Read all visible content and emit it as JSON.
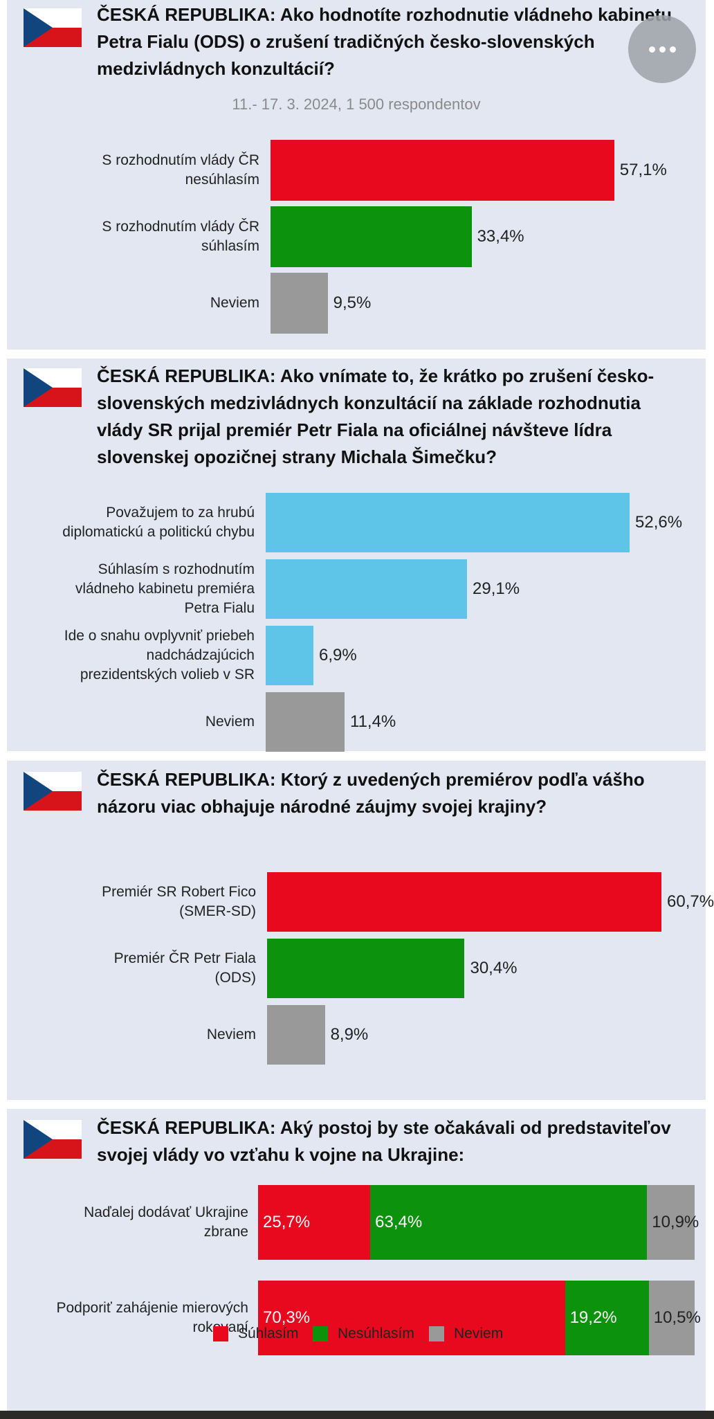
{
  "colors": {
    "red": "#e8091e",
    "green": "#0c920c",
    "gray": "#999999",
    "blue": "#5ec5e8",
    "panel": "#e2e7f1"
  },
  "legend": [
    {
      "label": "Súhlasím",
      "color": "#e8091e"
    },
    {
      "label": "Nesúhlasím",
      "color": "#0c920c"
    },
    {
      "label": "Neviem",
      "color": "#999999"
    }
  ],
  "chart_data": [
    {
      "type": "bar",
      "title": "ČESKÁ REPUBLIKA: Ako hodnotíte rozhodnutie vládneho kabinetu Petra Fialu (ODS) o zrušení tradičných česko-slovenských medzivládnych konzultácií?",
      "subtitle": "11.- 17. 3. 2024, 1 500 respondentov",
      "categories": [
        "S rozhodnutím vlády ČR\nnesúhlasím",
        "S rozhodnutím vlády ČR\nsúhlasím",
        "Neviem"
      ],
      "values": [
        57.1,
        33.4,
        9.5
      ],
      "value_labels": [
        "57,1%",
        "33,4%",
        "9,5%"
      ],
      "colors": [
        "#e8091e",
        "#0c920c",
        "#999999"
      ],
      "xlim": [
        0,
        65
      ]
    },
    {
      "type": "bar",
      "title": "ČESKÁ REPUBLIKA: Ako vnímate to, že krátko po zrušení česko-slovenských medzivládnych konzultácií na základe rozhodnutia vlády SR prijal premiér Petr Fiala na oficiálnej návšteve lídra slovenskej opozičnej strany Michala Šimečku?",
      "categories": [
        "Považujem to za hrubú\ndiplomatickú a politickú chybu",
        "Súhlasím s rozhodnutím\nvládneho kabinetu premiéra\nPetra Fialu",
        "Ide o snahu ovplyvniť priebeh\nnadchádzajúcich\nprezidentských volieb v SR",
        "Neviem"
      ],
      "values": [
        52.6,
        29.1,
        6.9,
        11.4
      ],
      "value_labels": [
        "52,6%",
        "29,1%",
        "6,9%",
        "11,4%"
      ],
      "colors": [
        "#5ec5e8",
        "#5ec5e8",
        "#5ec5e8",
        "#999999"
      ],
      "xlim": [
        0,
        65
      ]
    },
    {
      "type": "bar",
      "title": "ČESKÁ REPUBLIKA: Ktorý z uvedených premiérov podľa vášho názoru viac obhajuje národné záujmy svojej krajiny?",
      "categories": [
        "Premiér SR Robert Fico\n(SMER-SD)",
        "Premiér ČR Petr Fiala\n(ODS)",
        "Neviem"
      ],
      "values": [
        60.7,
        30.4,
        8.9
      ],
      "value_labels": [
        "60,7%",
        "30,4%",
        "8,9%"
      ],
      "colors": [
        "#e8091e",
        "#0c920c",
        "#999999"
      ],
      "xlim": [
        0,
        75
      ]
    },
    {
      "type": "bar",
      "stacked": true,
      "title": "ČESKÁ REPUBLIKA: Aký postoj by ste očakávali od predstaviteľov svojej vlády vo vzťahu k vojne na Ukrajine:",
      "categories": [
        "Naďalej dodávať Ukrajine\nzbrane",
        "Podporiť zahájenie mierových\nrokovaní"
      ],
      "series": [
        {
          "name": "Súhlasím",
          "values": [
            25.7,
            70.3
          ],
          "value_labels": [
            "25,7%",
            "70,3%"
          ],
          "color": "#e8091e"
        },
        {
          "name": "Nesúhlasím",
          "values": [
            63.4,
            19.2
          ],
          "value_labels": [
            "63,4%",
            "19,2%"
          ],
          "color": "#0c920c"
        },
        {
          "name": "Neviem",
          "values": [
            10.9,
            10.5
          ],
          "value_labels": [
            "10,9%",
            "10,5%"
          ],
          "color": "#999999"
        }
      ],
      "legend_position": "bottom"
    }
  ]
}
